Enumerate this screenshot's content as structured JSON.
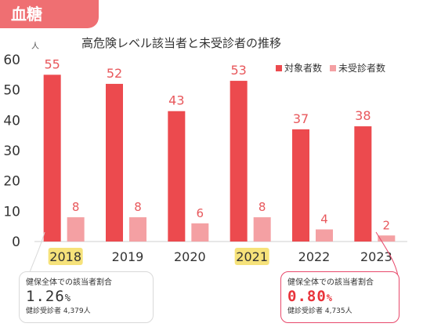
{
  "badge": "血糖",
  "chart_data": {
    "type": "bar",
    "title": "高危険レベル該当者と未受診者の推移",
    "ylabel": "人",
    "ylim": [
      0,
      60
    ],
    "yticks": [
      0,
      10,
      20,
      30,
      40,
      50,
      60
    ],
    "categories": [
      "2018",
      "2019",
      "2020",
      "2021",
      "2022",
      "2023"
    ],
    "highlight_categories": [
      "2018",
      "2021"
    ],
    "series": [
      {
        "name": "対象者数",
        "values": [
          55,
          52,
          43,
          53,
          37,
          38
        ],
        "color": "#ec4a4e"
      },
      {
        "name": "未受診者数",
        "values": [
          8,
          8,
          6,
          8,
          4,
          2
        ],
        "color": "#f4a0a3"
      }
    ],
    "colors": {
      "label": "#e8585c",
      "highlight": "#f6e27a",
      "axis": "#999999"
    }
  },
  "notes": [
    {
      "label": "健保全体での該当者割合",
      "rate": "1.26",
      "unit": "%",
      "count": "健診受診者 4,379人"
    },
    {
      "label": "健保全体での該当者割合",
      "rate": "0.80",
      "unit": "%",
      "count": "健診受診者 4,735人"
    }
  ]
}
